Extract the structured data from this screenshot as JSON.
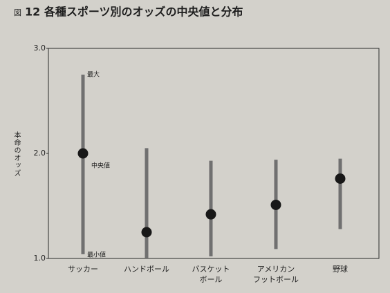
{
  "chart_data": {
    "type": "range",
    "title_prefix": "図",
    "title": "12 各種スポーツ別のオッズの中央値と分布",
    "ylabel": "本命のオッズ",
    "categories": [
      [
        "サッカー"
      ],
      [
        "ハンドボール"
      ],
      [
        "バスケット",
        "ボール"
      ],
      [
        "アメリカン",
        "フットボール"
      ],
      [
        "野球"
      ]
    ],
    "high": [
      2.75,
      2.05,
      1.93,
      1.94,
      1.95
    ],
    "low": [
      1.04,
      1.0,
      1.02,
      1.09,
      1.28
    ],
    "median": [
      2.0,
      1.25,
      1.42,
      1.51,
      1.76
    ],
    "annotations": {
      "max": "最大",
      "median": "中央値",
      "min": "最小値"
    },
    "range_color": "#707070",
    "median_color": "#181818",
    "ylim": [
      1.0,
      3.0
    ],
    "yticks": [
      {
        "value": 1.0,
        "label": "1.0"
      },
      {
        "value": 2.0,
        "label": "2.0"
      },
      {
        "value": 3.0,
        "label": "3.0"
      }
    ],
    "grid": false
  }
}
